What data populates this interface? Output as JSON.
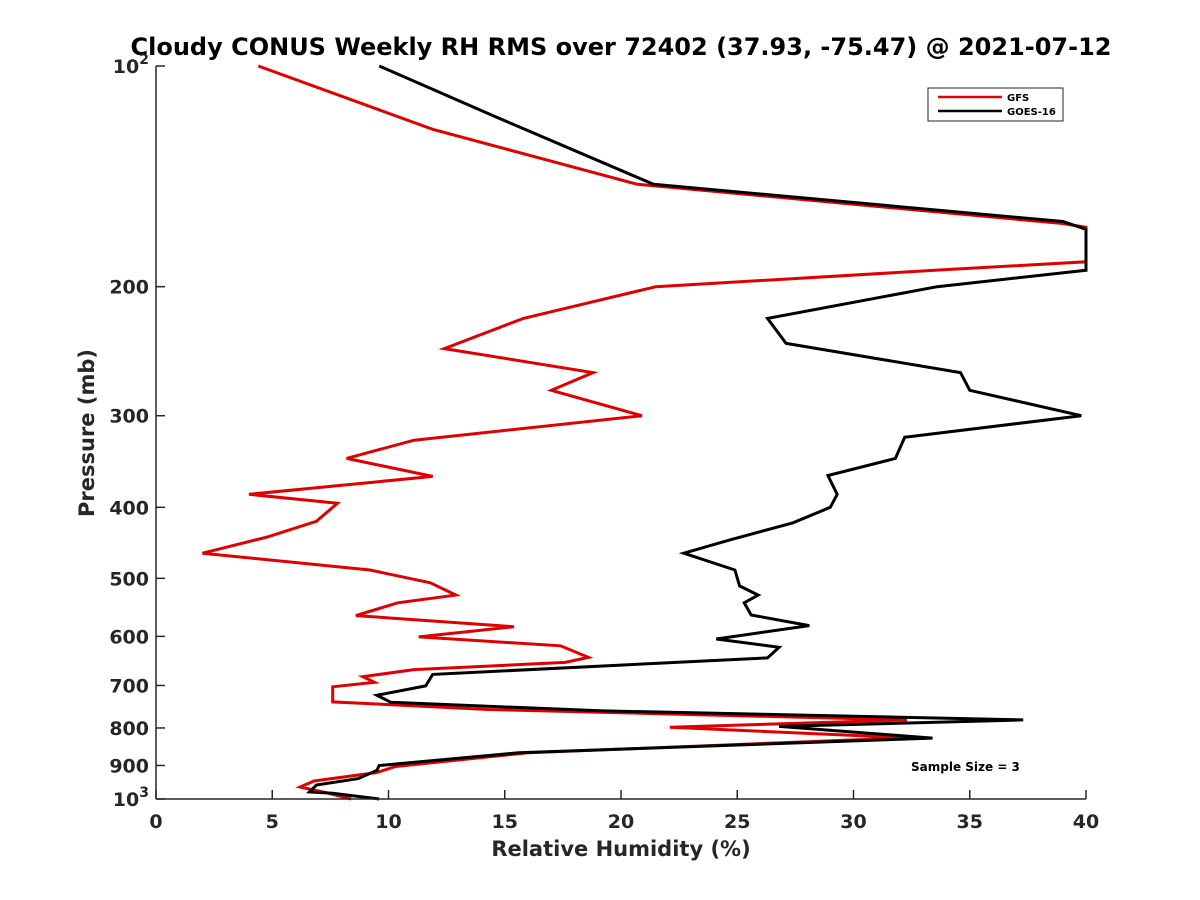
{
  "chart_data": {
    "type": "line",
    "title": "Cloudy CONUS Weekly RH RMS over 72402 (37.93, -75.47) @ 2021-07-12",
    "xlabel": "Relative Humidity (%)",
    "ylabel": "Pressure (mb)",
    "xlim": [
      0,
      40
    ],
    "ylim": [
      100,
      1000
    ],
    "y_scale": "log",
    "y_reversed": true,
    "x_ticks": [
      "0",
      "5",
      "10",
      "15",
      "20",
      "25",
      "30",
      "35",
      "40"
    ],
    "y_ticks": [
      {
        "value": 100,
        "base": "10",
        "exp": "2"
      },
      {
        "value": 200,
        "label": "200"
      },
      {
        "value": 300,
        "label": "300"
      },
      {
        "value": 400,
        "label": "400"
      },
      {
        "value": 500,
        "label": "500"
      },
      {
        "value": 600,
        "label": "600"
      },
      {
        "value": 700,
        "label": "700"
      },
      {
        "value": 800,
        "label": "800"
      },
      {
        "value": 900,
        "label": "900"
      },
      {
        "value": 1000,
        "base": "10",
        "exp": "3"
      }
    ],
    "grid": false,
    "legend_position": "top-right",
    "annotation": "Sample Size = 3",
    "series": [
      {
        "name": "GFS",
        "color": "#e00000",
        "points": [
          [
            4.4,
            100
          ],
          [
            11.9,
            122
          ],
          [
            20.7,
            145
          ],
          [
            39,
            164
          ],
          [
            40,
            166
          ],
          [
            40,
            185
          ],
          [
            33.5,
            190
          ],
          [
            21.5,
            200
          ],
          [
            15.8,
            221
          ],
          [
            12.4,
            243
          ],
          [
            18.8,
            262
          ],
          [
            17,
            277
          ],
          [
            20.9,
            300
          ],
          [
            11.1,
            324
          ],
          [
            8.2,
            343
          ],
          [
            11.9,
            363
          ],
          [
            4,
            384
          ],
          [
            7.8,
            395
          ],
          [
            6.9,
            418
          ],
          [
            4.8,
            439
          ],
          [
            2,
            462
          ],
          [
            9.2,
            487
          ],
          [
            11.8,
            507
          ],
          [
            12.9,
            527
          ],
          [
            10.4,
            540
          ],
          [
            8.6,
            562
          ],
          [
            15.4,
            582
          ],
          [
            11.3,
            601
          ],
          [
            17.4,
            618
          ],
          [
            18.6,
            641
          ],
          [
            17.6,
            651
          ],
          [
            11.1,
            666
          ],
          [
            8.9,
            681
          ],
          [
            9.4,
            693
          ],
          [
            7.6,
            703
          ],
          [
            7.6,
            737
          ],
          [
            14.3,
            755
          ],
          [
            32.3,
            780
          ],
          [
            22.1,
            798
          ],
          [
            32.3,
            825
          ],
          [
            16,
            865
          ],
          [
            10.3,
            903
          ],
          [
            9.5,
            920
          ],
          [
            6.8,
            945
          ],
          [
            6.2,
            963
          ],
          [
            7.3,
            980
          ],
          [
            8.4,
            1000
          ]
        ]
      },
      {
        "name": "GOES-16",
        "color": "#000000",
        "points": [
          [
            9.6,
            100
          ],
          [
            14.8,
            118
          ],
          [
            21.4,
            145
          ],
          [
            39,
            163
          ],
          [
            40,
            167
          ],
          [
            40,
            190
          ],
          [
            33.6,
            200
          ],
          [
            26.3,
            221
          ],
          [
            27.1,
            239
          ],
          [
            34.6,
            262
          ],
          [
            35,
            277
          ],
          [
            39.8,
            300
          ],
          [
            32.2,
            321
          ],
          [
            31.8,
            343
          ],
          [
            28.9,
            362
          ],
          [
            29.3,
            384
          ],
          [
            29,
            400
          ],
          [
            27.4,
            420
          ],
          [
            24.7,
            443
          ],
          [
            22.7,
            462
          ],
          [
            24.9,
            487
          ],
          [
            25.1,
            512
          ],
          [
            25.9,
            527
          ],
          [
            25.3,
            540
          ],
          [
            25.6,
            561
          ],
          [
            28.1,
            580
          ],
          [
            24.1,
            605
          ],
          [
            26.8,
            621
          ],
          [
            26.3,
            642
          ],
          [
            11.9,
            676
          ],
          [
            11.6,
            701
          ],
          [
            9.5,
            722
          ],
          [
            10.1,
            738
          ],
          [
            19.1,
            758
          ],
          [
            37.3,
            780
          ],
          [
            26.8,
            796
          ],
          [
            33.4,
            826
          ],
          [
            15.6,
            865
          ],
          [
            9.6,
            900
          ],
          [
            9.5,
            914
          ],
          [
            8.7,
            938
          ],
          [
            6.9,
            957
          ],
          [
            6.6,
            978
          ],
          [
            7.6,
            982
          ],
          [
            9.6,
            1000
          ]
        ]
      }
    ]
  }
}
